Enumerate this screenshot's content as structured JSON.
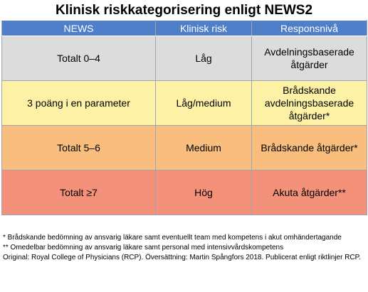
{
  "title": "Klinisk riskkategorisering enligt NEWS2",
  "table": {
    "headers": [
      "NEWS",
      "Klinisk risk",
      "Responsnivå"
    ],
    "header_color": "#4f7fc9",
    "rows": [
      {
        "news": "Totalt 0–4",
        "risk": "Låg",
        "response": "Avdelningsbaserade\nåtgärder",
        "color": "#dcdcdc"
      },
      {
        "news": "3 poäng i en parameter",
        "risk": "Låg/medium",
        "response": "Brådskande\navdelningsbaserade\nåtgärder*",
        "color": "#fdf1a6"
      },
      {
        "news": "Totalt 5–6",
        "risk": "Medium",
        "response": "Brådskande åtgärder*",
        "color": "#f9be7d"
      },
      {
        "news": "Totalt ≥7",
        "risk": "Hög",
        "response": "Akuta åtgärder**",
        "color": "#f4917a"
      }
    ]
  },
  "footnotes": {
    "note1": "* Brådskande bedömning av ansvarig läkare samt eventuellt team med kompetens i akut omhändertagande",
    "note2": "** Omedelbar bedömning av ansvarig läkare samt personal med intensivvårdskompetens",
    "source": "Original: Royal College of Physicians (RCP). Översättning: Martin Spångfors 2018. Publicerat enligt riktlinjer RCP."
  }
}
